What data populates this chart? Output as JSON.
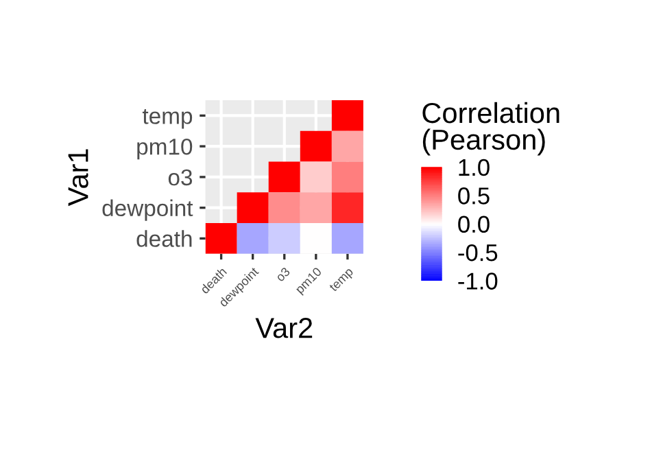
{
  "chart_data": {
    "type": "heatmap",
    "xlabel": "Var2",
    "ylabel": "Var1",
    "clabel": "Correlation\n(Pearson)",
    "categories": [
      "death",
      "dewpoint",
      "o3",
      "pm10",
      "temp"
    ],
    "y_categories": [
      "temp",
      "pm10",
      "o3",
      "dewpoint",
      "death"
    ],
    "cells": [
      [
        null,
        null,
        null,
        null,
        1.0
      ],
      [
        null,
        null,
        null,
        1.0,
        0.35
      ],
      [
        null,
        null,
        1.0,
        0.2,
        0.5
      ],
      [
        null,
        1.0,
        0.45,
        0.35,
        0.85
      ],
      [
        1.0,
        -0.35,
        -0.2,
        0.0,
        -0.35
      ]
    ],
    "clim": [
      -1.0,
      1.0
    ],
    "cticks": [
      {
        "value": 1,
        "label": "1.0"
      },
      0.5,
      {
        "value": 0,
        "label": "0.0"
      },
      -0.5,
      {
        "value": -1,
        "label": "-1.0"
      }
    ],
    "grid": true
  }
}
